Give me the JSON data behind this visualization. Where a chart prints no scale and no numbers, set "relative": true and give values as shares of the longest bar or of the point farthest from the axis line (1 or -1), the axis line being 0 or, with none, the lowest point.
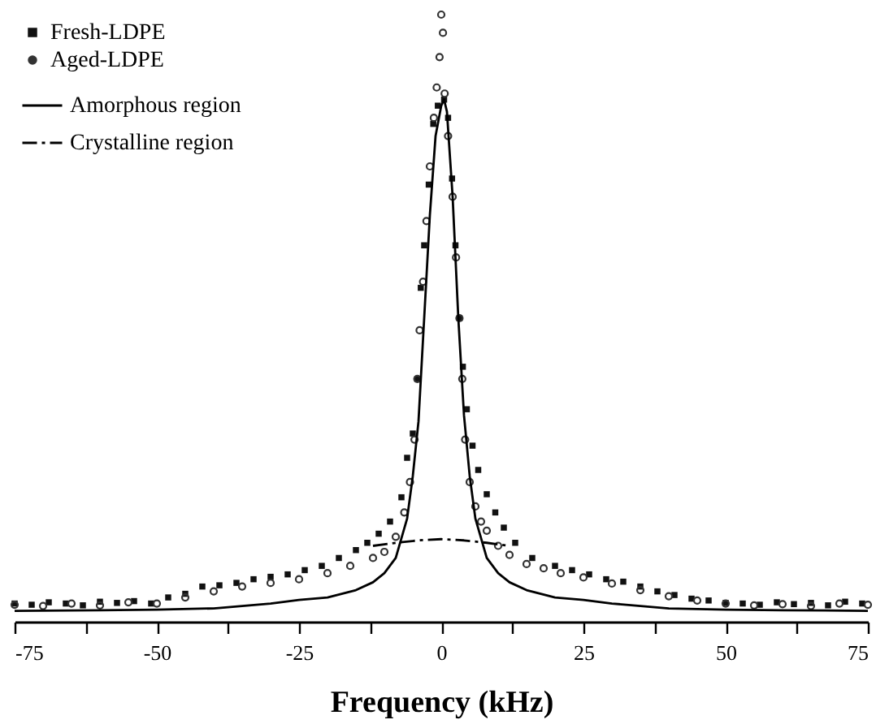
{
  "chart_data": {
    "type": "scatter",
    "xlabel": "Frequency (kHz)",
    "relative": true,
    "xlim": [
      -75,
      75
    ],
    "xticks": [
      -75,
      {
        "value": -62.5,
        "label": null
      },
      -50,
      {
        "value": -37.5,
        "label": null
      },
      -25,
      {
        "value": -12.5,
        "label": null
      },
      0,
      {
        "value": 12.5,
        "label": null
      },
      25,
      {
        "value": 37.5,
        "label": null
      },
      50,
      {
        "value": 62.5,
        "label": null
      },
      75
    ],
    "legend": "top left",
    "grid": false,
    "series": [
      {
        "name": "Fresh-LDPE",
        "marker": "square",
        "color": "#111111",
        "x": [
          -75,
          -72,
          -69,
          -66,
          -63,
          -60,
          -57,
          -54,
          -51,
          -48,
          -45,
          -42,
          -39,
          -36,
          -33,
          -30,
          -27,
          -24,
          -21,
          -18,
          -15,
          -13,
          -11,
          -9,
          -7,
          -6,
          -5,
          -4.2,
          -3.6,
          -3,
          -2.2,
          -1.4,
          -0.6,
          0.5,
          1.2,
          1.9,
          2.5,
          3.2,
          3.8,
          4.5,
          5.5,
          6.5,
          8,
          9.5,
          11,
          13,
          16,
          20,
          23,
          26,
          29,
          32,
          35,
          38,
          41,
          44,
          47,
          50,
          53,
          56,
          59,
          62,
          65,
          68,
          71,
          74
        ],
        "values": [
          0.03,
          0.028,
          0.032,
          0.03,
          0.027,
          0.033,
          0.031,
          0.034,
          0.03,
          0.04,
          0.046,
          0.058,
          0.06,
          0.064,
          0.07,
          0.074,
          0.078,
          0.085,
          0.092,
          0.105,
          0.118,
          0.13,
          0.145,
          0.165,
          0.205,
          0.27,
          0.31,
          0.4,
          0.55,
          0.62,
          0.72,
          0.82,
          0.85,
          0.86,
          0.83,
          0.73,
          0.62,
          0.5,
          0.42,
          0.35,
          0.29,
          0.25,
          0.21,
          0.18,
          0.155,
          0.13,
          0.105,
          0.092,
          0.085,
          0.078,
          0.07,
          0.066,
          0.058,
          0.05,
          0.044,
          0.038,
          0.035,
          0.031,
          0.03,
          0.028,
          0.032,
          0.029,
          0.031,
          0.027,
          0.033,
          0.03
        ]
      },
      {
        "name": "Aged-LDPE",
        "marker": "circle",
        "color": "#333333",
        "x": [
          -75,
          -70,
          -65,
          -60,
          -55,
          -50,
          -45,
          -40,
          -35,
          -30,
          -25,
          -20,
          -16,
          -12,
          -10,
          -8,
          -6.5,
          -5.5,
          -4.7,
          -4.2,
          -3.8,
          -3.2,
          -2.6,
          -2,
          -1.3,
          -0.8,
          -0.3,
          0,
          0.3,
          0.6,
          1.2,
          2,
          2.6,
          3.2,
          3.7,
          4.2,
          5,
          6,
          7,
          8,
          10,
          12,
          15,
          18,
          21,
          25,
          30,
          35,
          40,
          45,
          50,
          55,
          60,
          65,
          70,
          75
        ],
        "values": [
          0.028,
          0.026,
          0.03,
          0.027,
          0.032,
          0.03,
          0.04,
          0.05,
          0.058,
          0.064,
          0.07,
          0.08,
          0.092,
          0.105,
          0.115,
          0.14,
          0.18,
          0.23,
          0.3,
          0.4,
          0.48,
          0.56,
          0.66,
          0.75,
          0.83,
          0.88,
          0.93,
          1.0,
          0.97,
          0.87,
          0.8,
          0.7,
          0.6,
          0.5,
          0.4,
          0.3,
          0.23,
          0.19,
          0.165,
          0.15,
          0.125,
          0.11,
          0.095,
          0.088,
          0.08,
          0.073,
          0.063,
          0.052,
          0.042,
          0.035,
          0.03,
          0.027,
          0.029,
          0.026,
          0.03,
          0.028
        ]
      },
      {
        "name": "Amorphous region",
        "type": "line",
        "line_style": "solid",
        "color": "#000000",
        "x": [
          -75,
          -60,
          -50,
          -40,
          -30,
          -25,
          -20,
          -15,
          -12,
          -10,
          -8,
          -6,
          -5,
          -4,
          -3,
          -2,
          -1,
          0,
          0.5,
          1,
          2,
          3,
          4,
          5,
          6,
          8,
          10,
          12,
          15,
          20,
          25,
          30,
          40,
          50,
          60,
          75
        ],
        "values": [
          0.018,
          0.019,
          0.02,
          0.022,
          0.03,
          0.036,
          0.04,
          0.052,
          0.065,
          0.08,
          0.105,
          0.17,
          0.24,
          0.33,
          0.5,
          0.67,
          0.8,
          0.85,
          0.86,
          0.84,
          0.7,
          0.5,
          0.34,
          0.24,
          0.17,
          0.105,
          0.08,
          0.065,
          0.052,
          0.04,
          0.036,
          0.03,
          0.022,
          0.02,
          0.019,
          0.018
        ]
      },
      {
        "name": "Crystalline region",
        "type": "line",
        "line_style": "dashdot",
        "color": "#000000",
        "x": [
          -12,
          -8,
          -4,
          0,
          4,
          8,
          12
        ],
        "values": [
          0.125,
          0.13,
          0.134,
          0.136,
          0.134,
          0.13,
          0.125
        ]
      }
    ]
  }
}
